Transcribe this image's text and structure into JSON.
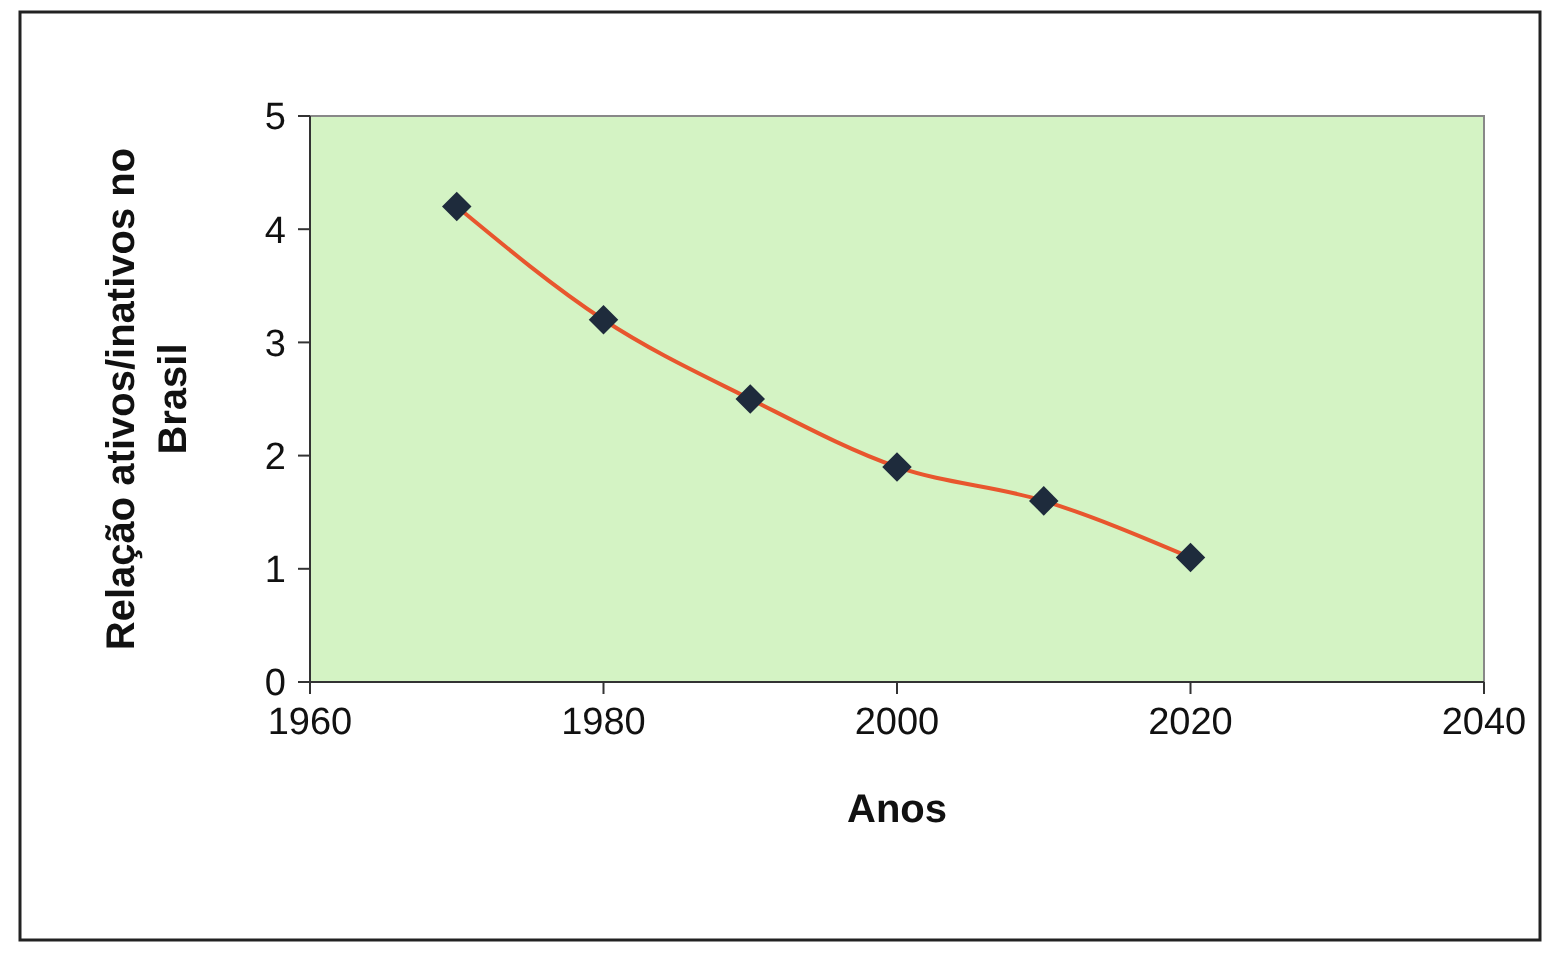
{
  "chart_data": {
    "type": "line",
    "xlabel": "Anos",
    "ylabel": "Relação ativos/inativos no Brasil",
    "x": [
      1970,
      1980,
      1990,
      2000,
      2010,
      2020
    ],
    "series": [
      {
        "color": "#e8562e",
        "values": [
          4.2,
          3.2,
          2.5,
          1.9,
          1.6,
          1.1
        ]
      }
    ],
    "xlim": [
      1960,
      2040
    ],
    "xticks": [
      1960,
      1980,
      2000,
      2020,
      2040
    ],
    "ylim": [
      0,
      5
    ],
    "yticks": [
      0,
      1,
      2,
      3,
      4,
      5
    ],
    "marker": "diamond",
    "line_style": "solid"
  }
}
